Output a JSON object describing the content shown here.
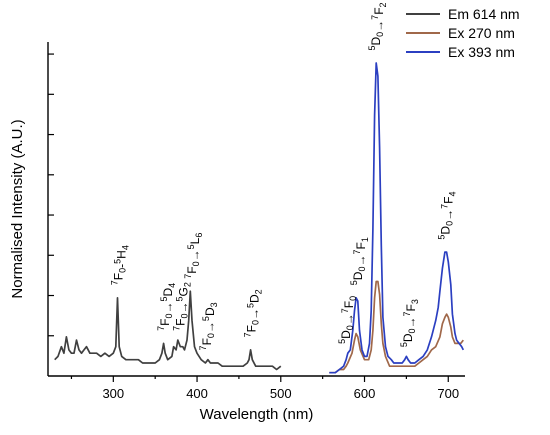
{
  "chart_data": {
    "type": "line",
    "xlabel": "Wavelength (nm)",
    "ylabel": "Normalised Intensity (A.U.)",
    "xlim": [
      222,
      720
    ],
    "ylim": [
      0,
      1.0
    ],
    "x_ticks": [
      300,
      400,
      500,
      600,
      700
    ],
    "y_ticks_labeled": false,
    "legend_position": "top-right",
    "series": [
      {
        "name": "Em 614 nm",
        "color": "#404040",
        "x": [
          230,
          234,
          238,
          241,
          244,
          247,
          250,
          253,
          256,
          259,
          262,
          265,
          268,
          272,
          276,
          280,
          285,
          290,
          295,
          300,
          303,
          305,
          307,
          310,
          315,
          320,
          325,
          330,
          335,
          340,
          345,
          350,
          355,
          358,
          360,
          362,
          365,
          370,
          372,
          375,
          377,
          380,
          383,
          385,
          388,
          390,
          392,
          394,
          397,
          400,
          405,
          410,
          413,
          416,
          420,
          425,
          430,
          435,
          440,
          445,
          450,
          455,
          460,
          462,
          464,
          466,
          470,
          475,
          480,
          485,
          490,
          495,
          500
        ],
        "y": [
          0.05,
          0.06,
          0.09,
          0.07,
          0.12,
          0.08,
          0.07,
          0.07,
          0.11,
          0.08,
          0.07,
          0.08,
          0.09,
          0.07,
          0.07,
          0.07,
          0.06,
          0.07,
          0.06,
          0.07,
          0.09,
          0.24,
          0.09,
          0.06,
          0.05,
          0.05,
          0.05,
          0.05,
          0.04,
          0.04,
          0.04,
          0.04,
          0.05,
          0.07,
          0.1,
          0.07,
          0.05,
          0.06,
          0.09,
          0.08,
          0.11,
          0.09,
          0.09,
          0.08,
          0.11,
          0.17,
          0.26,
          0.17,
          0.09,
          0.07,
          0.05,
          0.04,
          0.05,
          0.04,
          0.04,
          0.04,
          0.03,
          0.03,
          0.03,
          0.03,
          0.03,
          0.03,
          0.04,
          0.05,
          0.08,
          0.05,
          0.03,
          0.03,
          0.03,
          0.03,
          0.03,
          0.02,
          0.03
        ]
      },
      {
        "name": "Ex 270 nm",
        "color": "#a0684a",
        "x": [
          558,
          565,
          570,
          575,
          578,
          580,
          585,
          588,
          590,
          592,
          595,
          600,
          605,
          608,
          610,
          612,
          614,
          616,
          618,
          620,
          622,
          625,
          630,
          635,
          640,
          645,
          650,
          655,
          660,
          665,
          670,
          675,
          680,
          685,
          690,
          693,
          696,
          698,
          700,
          703,
          705,
          708,
          710,
          712,
          715,
          718
        ],
        "y": [
          0.01,
          0.01,
          0.02,
          0.02,
          0.03,
          0.04,
          0.07,
          0.11,
          0.13,
          0.12,
          0.08,
          0.05,
          0.05,
          0.08,
          0.14,
          0.24,
          0.29,
          0.29,
          0.25,
          0.16,
          0.1,
          0.06,
          0.03,
          0.03,
          0.03,
          0.03,
          0.03,
          0.03,
          0.03,
          0.04,
          0.05,
          0.06,
          0.08,
          0.09,
          0.12,
          0.16,
          0.18,
          0.19,
          0.18,
          0.15,
          0.12,
          0.1,
          0.1,
          0.1,
          0.1,
          0.11
        ]
      },
      {
        "name": "Ex 393 nm",
        "color": "#2b3fc1",
        "x": [
          558,
          565,
          570,
          575,
          578,
          580,
          583,
          586,
          588,
          590,
          592,
          594,
          597,
          600,
          603,
          606,
          608,
          610,
          612,
          614,
          616,
          618,
          620,
          622,
          625,
          628,
          632,
          635,
          640,
          645,
          648,
          650,
          652,
          655,
          660,
          665,
          670,
          675,
          680,
          685,
          688,
          690,
          693,
          696,
          698,
          700,
          703,
          705,
          708,
          710,
          713,
          716,
          718
        ],
        "y": [
          0.01,
          0.01,
          0.02,
          0.03,
          0.05,
          0.07,
          0.08,
          0.14,
          0.2,
          0.24,
          0.23,
          0.14,
          0.08,
          0.06,
          0.06,
          0.1,
          0.2,
          0.45,
          0.8,
          0.96,
          0.92,
          0.7,
          0.4,
          0.18,
          0.09,
          0.06,
          0.05,
          0.04,
          0.04,
          0.04,
          0.05,
          0.06,
          0.05,
          0.04,
          0.04,
          0.05,
          0.06,
          0.08,
          0.12,
          0.17,
          0.21,
          0.26,
          0.33,
          0.38,
          0.38,
          0.35,
          0.28,
          0.19,
          0.13,
          0.11,
          0.1,
          0.09,
          0.08
        ]
      }
    ],
    "annotations": [
      {
        "text": "7F0-5H4",
        "x": 306,
        "y": 0.26
      },
      {
        "text": "7F0→5D4",
        "x": 362,
        "y": 0.12
      },
      {
        "text": "7F0→5G2",
        "x": 380,
        "y": 0.12
      },
      {
        "text": "7F0→5L6",
        "x": 394,
        "y": 0.28
      },
      {
        "text": "7F0→5D3",
        "x": 412,
        "y": 0.06
      },
      {
        "text": "7F0→5D2",
        "x": 465,
        "y": 0.1
      },
      {
        "text": "5D0→7F0",
        "x": 578,
        "y": 0.08
      },
      {
        "text": "5D0→7F1",
        "x": 592,
        "y": 0.26
      },
      {
        "text": "5D0→7F2",
        "x": 614,
        "y": 0.98
      },
      {
        "text": "5D0→7F3",
        "x": 652,
        "y": 0.07
      },
      {
        "text": "5D0→7F4",
        "x": 697,
        "y": 0.4
      }
    ]
  }
}
